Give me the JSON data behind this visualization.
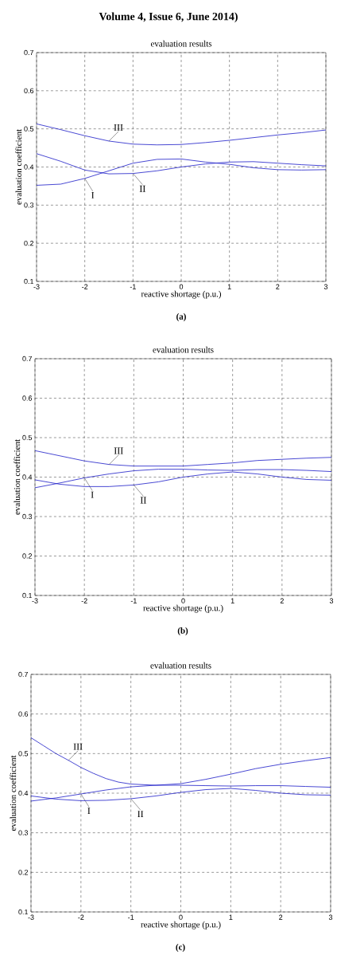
{
  "chart_data": [
    {
      "type": "line",
      "title": "evaluation results",
      "xlabel": "reactive shortage (p.u.)",
      "ylabel": "evaluation coefficient",
      "annotations": [
        "Volume 4, Issue 6, June 2014)",
        "(a)"
      ],
      "x": [
        -3,
        -2.5,
        -2,
        -1.5,
        -1,
        -0.5,
        0,
        0.5,
        1,
        1.5,
        2,
        2.5,
        3
      ],
      "xlim": [
        -3,
        3
      ],
      "ylim": [
        0.1,
        0.7
      ],
      "xticks": [
        -3,
        -2,
        -1,
        0,
        1,
        2,
        3
      ],
      "yticks": [
        0.1,
        0.2,
        0.3,
        0.4,
        0.5,
        0.6,
        0.7
      ],
      "grid": true,
      "series": [
        {
          "name": "I",
          "color": "#1c1cc8",
          "values": [
            0.352,
            0.355,
            0.37,
            0.39,
            0.41,
            0.42,
            0.421,
            0.413,
            0.407,
            0.398,
            0.393,
            0.392,
            0.393
          ]
        },
        {
          "name": "II",
          "color": "#1c1cc8",
          "values": [
            0.435,
            0.415,
            0.392,
            0.382,
            0.383,
            0.39,
            0.4,
            0.408,
            0.413,
            0.414,
            0.41,
            0.406,
            0.403
          ]
        },
        {
          "name": "III",
          "color": "#1c1cc8",
          "values": [
            0.513,
            0.498,
            0.482,
            0.468,
            0.46,
            0.458,
            0.459,
            0.464,
            0.47,
            0.477,
            0.484,
            0.49,
            0.497
          ]
        }
      ]
    },
    {
      "type": "line",
      "title": "evaluation results",
      "xlabel": "reactive shortage (p.u.)",
      "ylabel": "evaluation coefficient",
      "annotations": [
        "(b)"
      ],
      "x": [
        -3,
        -2.5,
        -2,
        -1.5,
        -1,
        -0.5,
        0,
        0.5,
        1,
        1.5,
        2,
        2.5,
        3
      ],
      "xlim": [
        -3,
        3
      ],
      "ylim": [
        0.1,
        0.7
      ],
      "xticks": [
        -3,
        -2,
        -1,
        0,
        1,
        2,
        3
      ],
      "yticks": [
        0.1,
        0.2,
        0.3,
        0.4,
        0.5,
        0.6,
        0.7
      ],
      "grid": true,
      "series": [
        {
          "name": "I",
          "color": "#1c1cc8",
          "values": [
            0.373,
            0.385,
            0.398,
            0.408,
            0.416,
            0.42,
            0.42,
            0.418,
            0.417,
            0.419,
            0.419,
            0.417,
            0.414
          ]
        },
        {
          "name": "II",
          "color": "#1c1cc8",
          "values": [
            0.393,
            0.382,
            0.376,
            0.376,
            0.38,
            0.388,
            0.4,
            0.408,
            0.413,
            0.408,
            0.4,
            0.394,
            0.392
          ]
        },
        {
          "name": "III",
          "color": "#1c1cc8",
          "values": [
            0.467,
            0.454,
            0.441,
            0.432,
            0.428,
            0.428,
            0.428,
            0.432,
            0.436,
            0.442,
            0.445,
            0.448,
            0.45
          ]
        }
      ]
    },
    {
      "type": "line",
      "title": "evaluation results",
      "xlabel": "reactive shortage (p.u.)",
      "ylabel": "evaluation coefficient",
      "annotations": [
        "(c)"
      ],
      "x": [
        -3,
        -2.5,
        -2,
        -1.5,
        -1,
        -0.5,
        0,
        0.5,
        1,
        1.5,
        2,
        2.5,
        3
      ],
      "xlim": [
        -3,
        3
      ],
      "ylim": [
        0.1,
        0.7
      ],
      "xticks": [
        -3,
        -2,
        -1,
        0,
        1,
        2,
        3
      ],
      "yticks": [
        0.1,
        0.2,
        0.3,
        0.4,
        0.5,
        0.6,
        0.7
      ],
      "grid": true,
      "series": [
        {
          "name": "I",
          "color": "#1c1cc8",
          "values": [
            0.38,
            0.388,
            0.398,
            0.408,
            0.416,
            0.42,
            0.42,
            0.419,
            0.418,
            0.419,
            0.419,
            0.417,
            0.415
          ]
        },
        {
          "name": "II",
          "color": "#1c1cc8",
          "values": [
            0.393,
            0.385,
            0.381,
            0.382,
            0.386,
            0.393,
            0.402,
            0.409,
            0.412,
            0.407,
            0.4,
            0.396,
            0.395
          ]
        },
        {
          "name": "III",
          "color": "#1c1cc8",
          "x": [
            -3,
            -2.75,
            -2.5,
            -2.25,
            -2,
            -1.75,
            -1.5,
            -1.25,
            -1,
            -0.5,
            0,
            0.5,
            1,
            1.5,
            2,
            2.5,
            3
          ],
          "values": [
            0.54,
            0.52,
            0.5,
            0.483,
            0.465,
            0.45,
            0.437,
            0.428,
            0.423,
            0.42,
            0.424,
            0.435,
            0.448,
            0.462,
            0.473,
            0.482,
            0.49
          ]
        }
      ]
    }
  ]
}
